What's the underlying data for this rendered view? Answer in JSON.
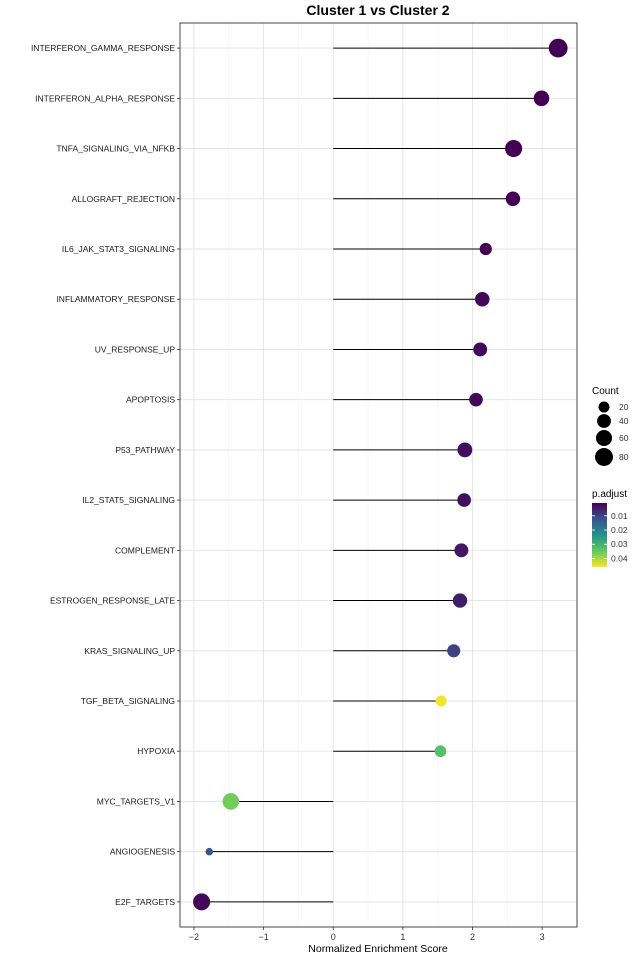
{
  "chart_data": {
    "type": "lollipop",
    "title": "Cluster 1 vs Cluster 2",
    "xlabel": "Normalized Enrichment Score",
    "ylabel": "",
    "xlim": [
      -2.2,
      3.5
    ],
    "x_ticks": [
      -2,
      -1,
      0,
      1,
      2,
      3
    ],
    "x_tick_labels": [
      "−2",
      "−1",
      "0",
      "1",
      "2",
      "3"
    ],
    "grid": true,
    "legend_position": "right",
    "categories": [
      "INTERFERON_GAMMA_RESPONSE",
      "INTERFERON_ALPHA_RESPONSE",
      "TNFA_SIGNALING_VIA_NFKB",
      "ALLOGRAFT_REJECTION",
      "IL6_JAK_STAT3_SIGNALING",
      "INFLAMMATORY_RESPONSE",
      "UV_RESPONSE_UP",
      "APOPTOSIS",
      "P53_PATHWAY",
      "IL2_STAT5_SIGNALING",
      "COMPLEMENT",
      "ESTROGEN_RESPONSE_LATE",
      "KRAS_SIGNALING_UP",
      "TGF_BETA_SIGNALING",
      "HYPOXIA",
      "MYC_TARGETS_V1",
      "ANGIOGENESIS",
      "E2F_TARGETS"
    ],
    "nes": [
      3.23,
      2.99,
      2.59,
      2.58,
      2.19,
      2.14,
      2.11,
      2.05,
      1.89,
      1.88,
      1.84,
      1.82,
      1.73,
      1.55,
      1.54,
      -1.47,
      -1.78,
      -1.89
    ],
    "count": [
      90,
      55,
      70,
      45,
      28,
      45,
      40,
      38,
      48,
      38,
      40,
      44,
      34,
      20,
      24,
      65,
      5,
      70
    ],
    "p_adjust": [
      0.001,
      0.001,
      0.001,
      0.001,
      0.001,
      0.002,
      0.002,
      0.002,
      0.003,
      0.003,
      0.004,
      0.005,
      0.01,
      0.045,
      0.033,
      0.036,
      0.013,
      0.002
    ],
    "size_legend": {
      "title": "Count",
      "values": [
        20,
        40,
        60,
        80
      ],
      "labels": [
        "20",
        "40",
        "60",
        "80"
      ]
    },
    "color_legend": {
      "title": "p.adjust",
      "range": [
        0.001,
        0.046
      ],
      "ticks": [
        0.01,
        0.02,
        0.03,
        0.04
      ],
      "labels": [
        "0.01",
        "0.02",
        "0.03",
        "0.04"
      ],
      "colors": [
        "#440154",
        "#3b528b",
        "#21918c",
        "#5ec962",
        "#fde725"
      ]
    }
  }
}
